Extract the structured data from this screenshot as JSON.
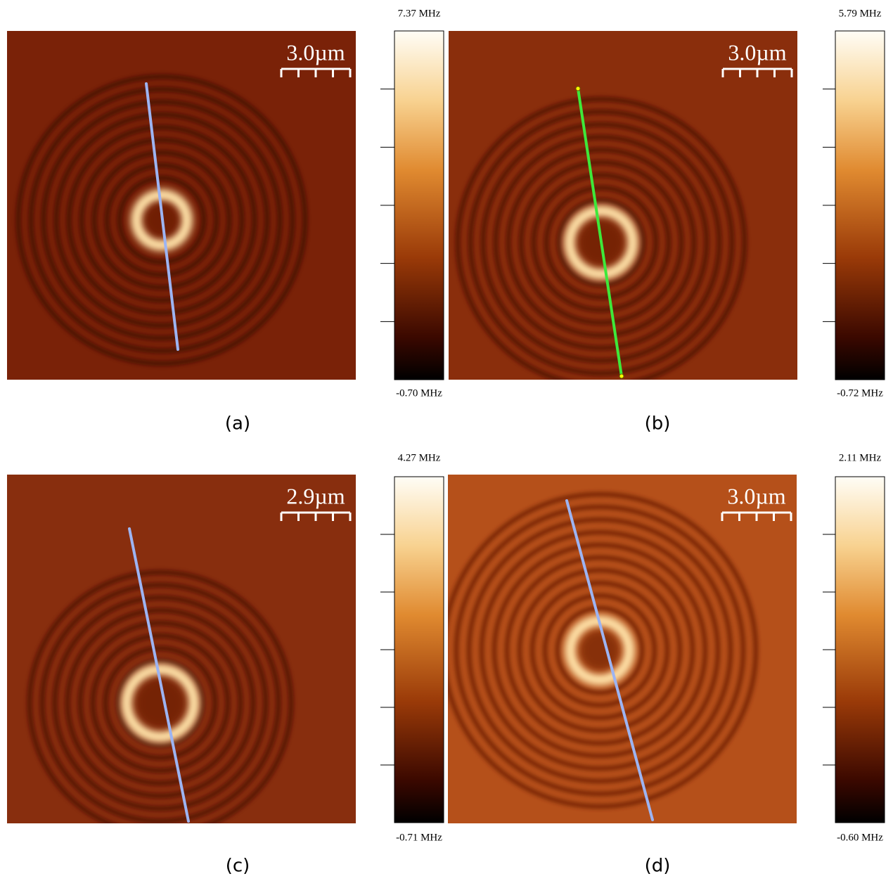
{
  "panels": [
    {
      "caption": "(a)",
      "scale_bar": "3.0µm",
      "colorbar_max": "7.37 MHz",
      "colorbar_min": "-0.70 MHz"
    },
    {
      "caption": "(b)",
      "scale_bar": "3.0µm",
      "colorbar_max": "5.79 MHz",
      "colorbar_min": "-0.72 MHz"
    },
    {
      "caption": "(c)",
      "scale_bar": "2.9µm",
      "colorbar_max": "4.27 MHz",
      "colorbar_min": "-0.71 MHz"
    },
    {
      "caption": "(d)",
      "scale_bar": "3.0µm",
      "colorbar_max": "2.11 MHz",
      "colorbar_min": "-0.60 MHz"
    }
  ]
}
